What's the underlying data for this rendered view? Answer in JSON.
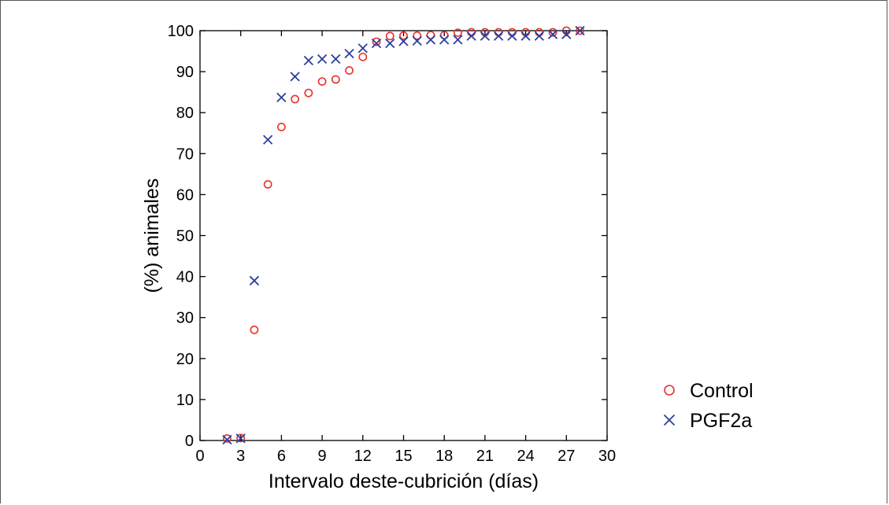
{
  "chart_data": {
    "type": "scatter",
    "title": "",
    "xlabel": "Intervalo deste-cubrición (días)",
    "ylabel": "(%) animales",
    "xlim": [
      0,
      30
    ],
    "ylim": [
      0,
      100
    ],
    "xticks": [
      0,
      3,
      6,
      9,
      12,
      15,
      18,
      21,
      24,
      27,
      30
    ],
    "yticks": [
      0,
      10,
      20,
      30,
      40,
      50,
      60,
      70,
      80,
      90,
      100
    ],
    "grid": false,
    "legend_position": "right",
    "series": [
      {
        "name": "Control",
        "marker": "circle",
        "color": "#e8302a",
        "x": [
          2,
          3,
          4,
          5,
          6,
          7,
          8,
          9,
          10,
          11,
          12,
          13,
          14,
          15,
          16,
          17,
          18,
          19,
          20,
          21,
          22,
          23,
          24,
          25,
          26,
          27,
          28
        ],
        "y": [
          0.5,
          0.6,
          27,
          62.5,
          76.5,
          83.3,
          84.8,
          87.6,
          88.1,
          90.3,
          93.6,
          97.3,
          98.7,
          98.8,
          98.8,
          98.9,
          98.9,
          99.5,
          99.6,
          99.6,
          99.6,
          99.6,
          99.6,
          99.6,
          99.6,
          100,
          100
        ]
      },
      {
        "name": "PGF2a",
        "marker": "x",
        "color": "#2b3f9e",
        "x": [
          2,
          3,
          4,
          5,
          6,
          7,
          8,
          9,
          10,
          11,
          12,
          13,
          14,
          15,
          16,
          17,
          18,
          19,
          20,
          21,
          22,
          23,
          24,
          25,
          26,
          27,
          28
        ],
        "y": [
          0.2,
          0.5,
          39,
          73.4,
          83.7,
          88.8,
          92.7,
          93.1,
          93.1,
          94.4,
          95.7,
          96.9,
          96.9,
          97.4,
          97.5,
          97.8,
          97.8,
          97.8,
          98.7,
          98.7,
          98.7,
          98.7,
          98.7,
          98.7,
          99.1,
          99.1,
          100
        ]
      }
    ]
  }
}
